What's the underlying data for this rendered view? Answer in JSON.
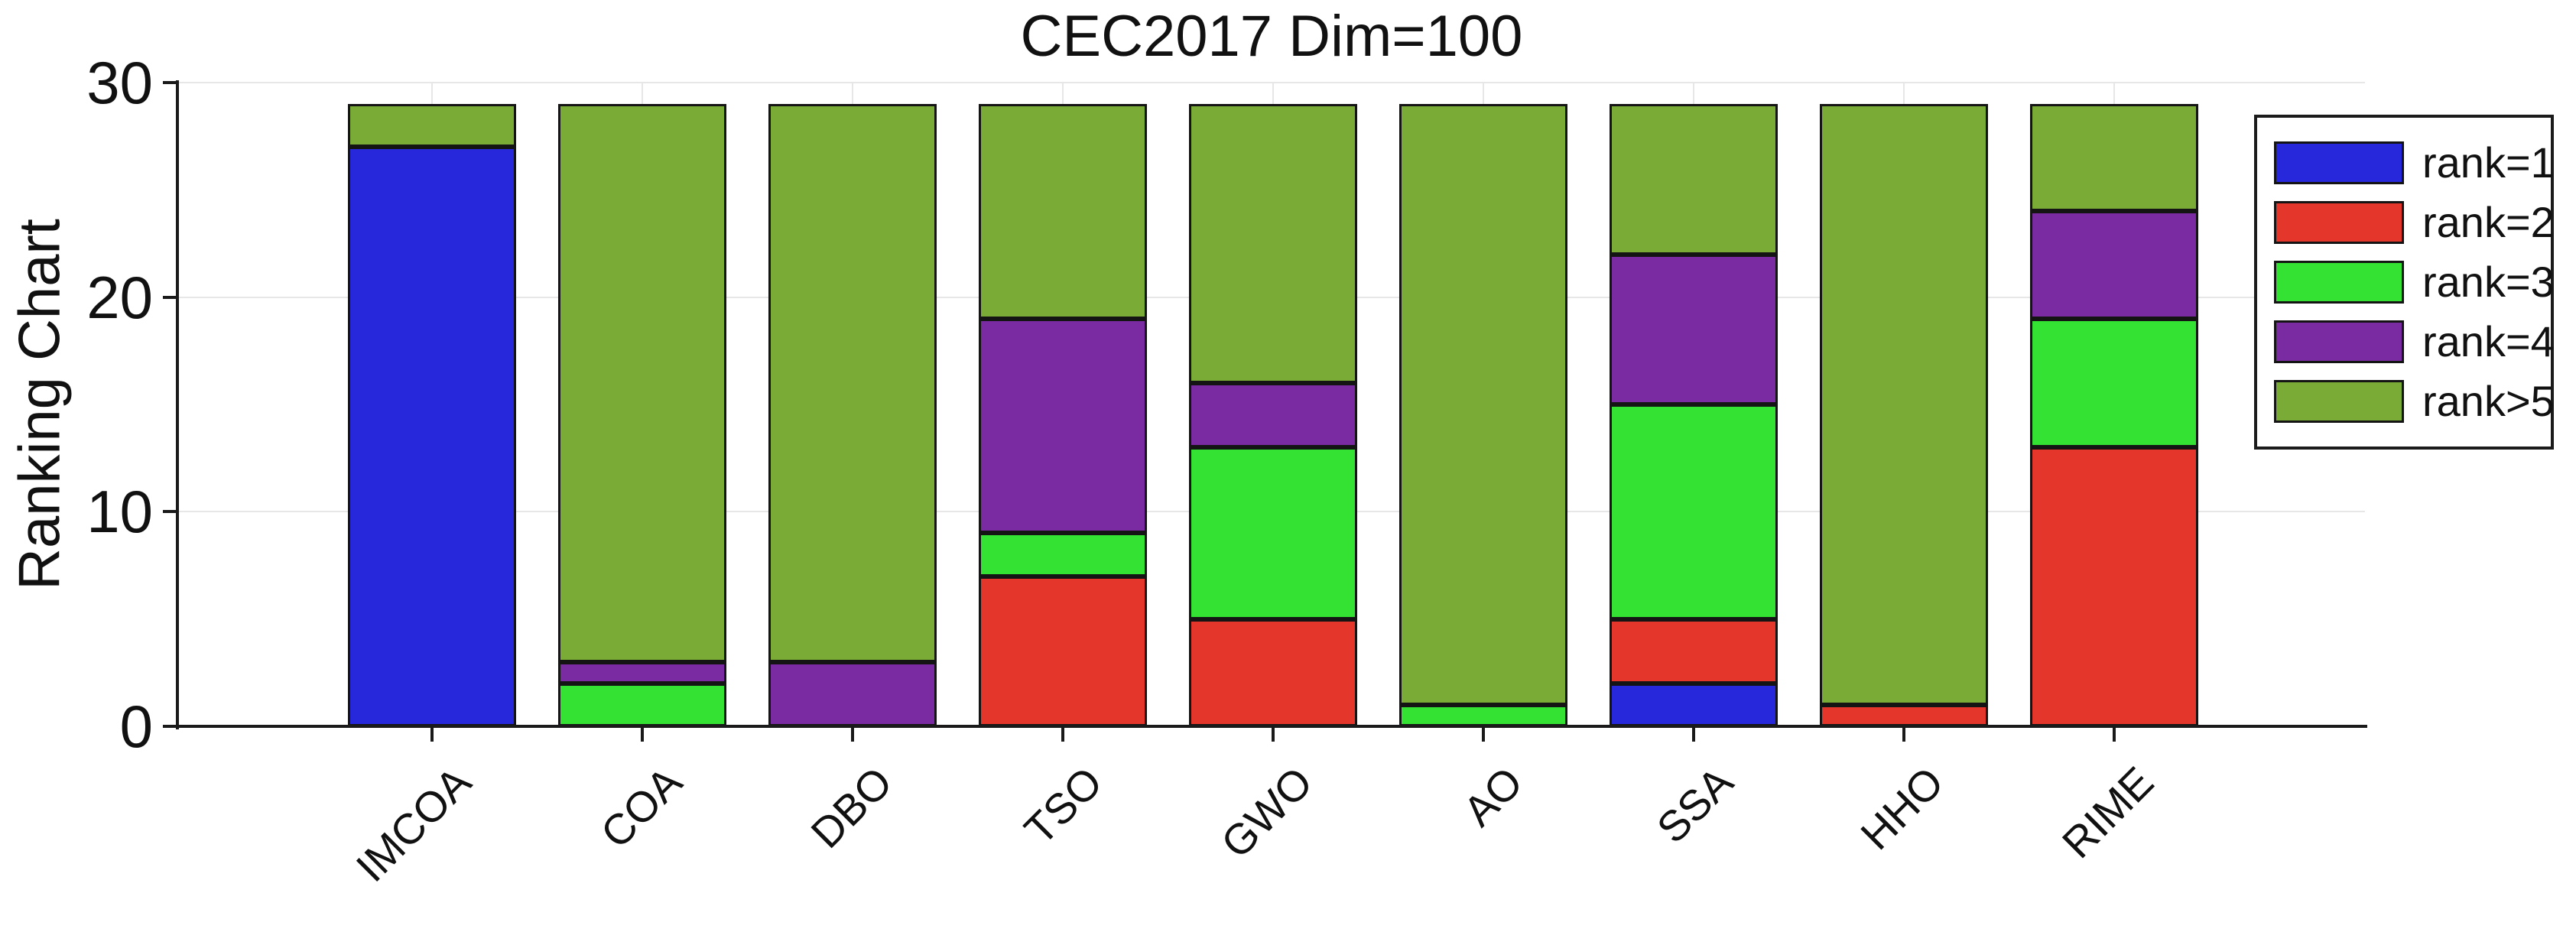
{
  "chart_data": {
    "type": "bar",
    "stacked": true,
    "title": "CEC2017 Dim=100",
    "xlabel": "",
    "ylabel": "Ranking Chart",
    "categories": [
      "IMCOA",
      "COA",
      "DBO",
      "TSO",
      "GWO",
      "AO",
      "SSA",
      "HHO",
      "RIME"
    ],
    "series": [
      {
        "name": "rank=1",
        "color": "#2727DC",
        "values": [
          27,
          0,
          0,
          0,
          0,
          0,
          2,
          0,
          0
        ]
      },
      {
        "name": "rank=2",
        "color": "#E5362C",
        "values": [
          0,
          0,
          0,
          7,
          5,
          0,
          3,
          1,
          13
        ]
      },
      {
        "name": "rank=3",
        "color": "#33E233",
        "values": [
          0,
          2,
          0,
          2,
          8,
          1,
          10,
          0,
          6
        ]
      },
      {
        "name": "rank=4",
        "color": "#7A2BA1",
        "values": [
          0,
          1,
          3,
          10,
          3,
          0,
          7,
          0,
          5
        ]
      },
      {
        "name": "rank>5",
        "color": "#7BAB37",
        "values": [
          2,
          26,
          26,
          10,
          13,
          28,
          7,
          28,
          5
        ]
      }
    ],
    "bar_total_per_category": 29,
    "ylim": [
      0,
      30
    ],
    "yticks": [
      0,
      10,
      20,
      30
    ],
    "grid": true,
    "legend_position": "upper right",
    "grid_color": "#E7E7E7",
    "axis_color": "#1A1A1A",
    "bar_edge_color": "#141414"
  }
}
